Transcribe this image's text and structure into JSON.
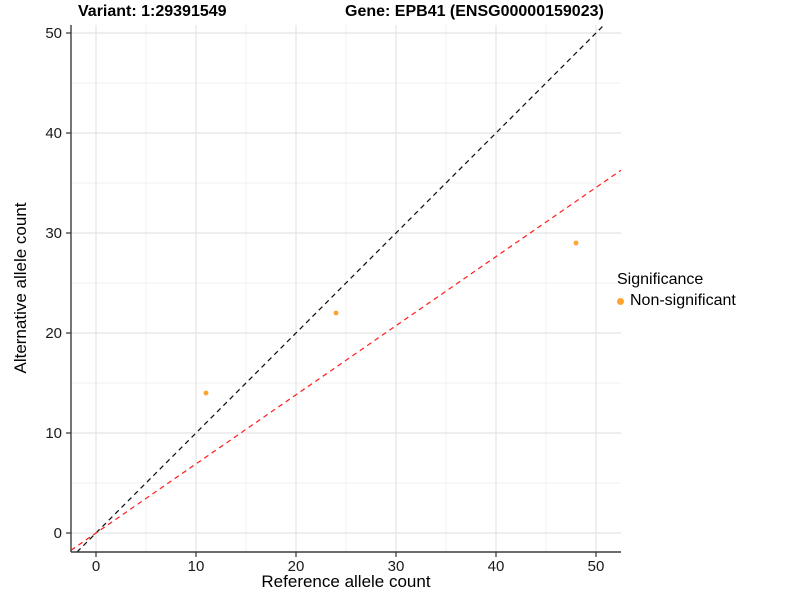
{
  "header": {
    "variant_title": "Variant: 1:29391549",
    "gene_title": "Gene: EPB41 (ENSG00000159023)"
  },
  "chart_data": {
    "type": "scatter",
    "title_left": "Variant: 1:29391549",
    "title_right": "Gene: EPB41 (ENSG00000159023)",
    "xlabel": "Reference allele count",
    "ylabel": "Alternative allele count",
    "xlim": [
      -2.5,
      52.5
    ],
    "ylim": [
      -1.9,
      50.8
    ],
    "x_ticks": [
      0,
      10,
      20,
      30,
      40,
      50
    ],
    "y_ticks": [
      0,
      10,
      20,
      30,
      40,
      50
    ],
    "minor_x": [
      5,
      15,
      25,
      35,
      45
    ],
    "minor_y": [
      5,
      15,
      25,
      35,
      45
    ],
    "grid": true,
    "series": [
      {
        "name": "Non-significant",
        "color": "#FFA42E",
        "points": [
          {
            "x": 11,
            "y": 14
          },
          {
            "x": 24,
            "y": 22
          },
          {
            "x": 48,
            "y": 29
          }
        ]
      }
    ],
    "lines": [
      {
        "name": "identity-line",
        "slope": 1.0,
        "intercept": 0,
        "color": "#111111",
        "style": "dashed"
      },
      {
        "name": "fit-line",
        "slope": 0.691,
        "intercept": 0,
        "color": "#FF2222",
        "style": "dashed"
      }
    ],
    "legend": {
      "title": "Significance",
      "position": "right",
      "items": [
        {
          "label": "Non-significant",
          "color": "#FFA42E"
        }
      ]
    },
    "colors": {
      "grid_major": "#E4E4E4",
      "grid_minor": "#F0F0F0",
      "axis_line": "#3C3C3C",
      "tick": "#333333"
    }
  }
}
